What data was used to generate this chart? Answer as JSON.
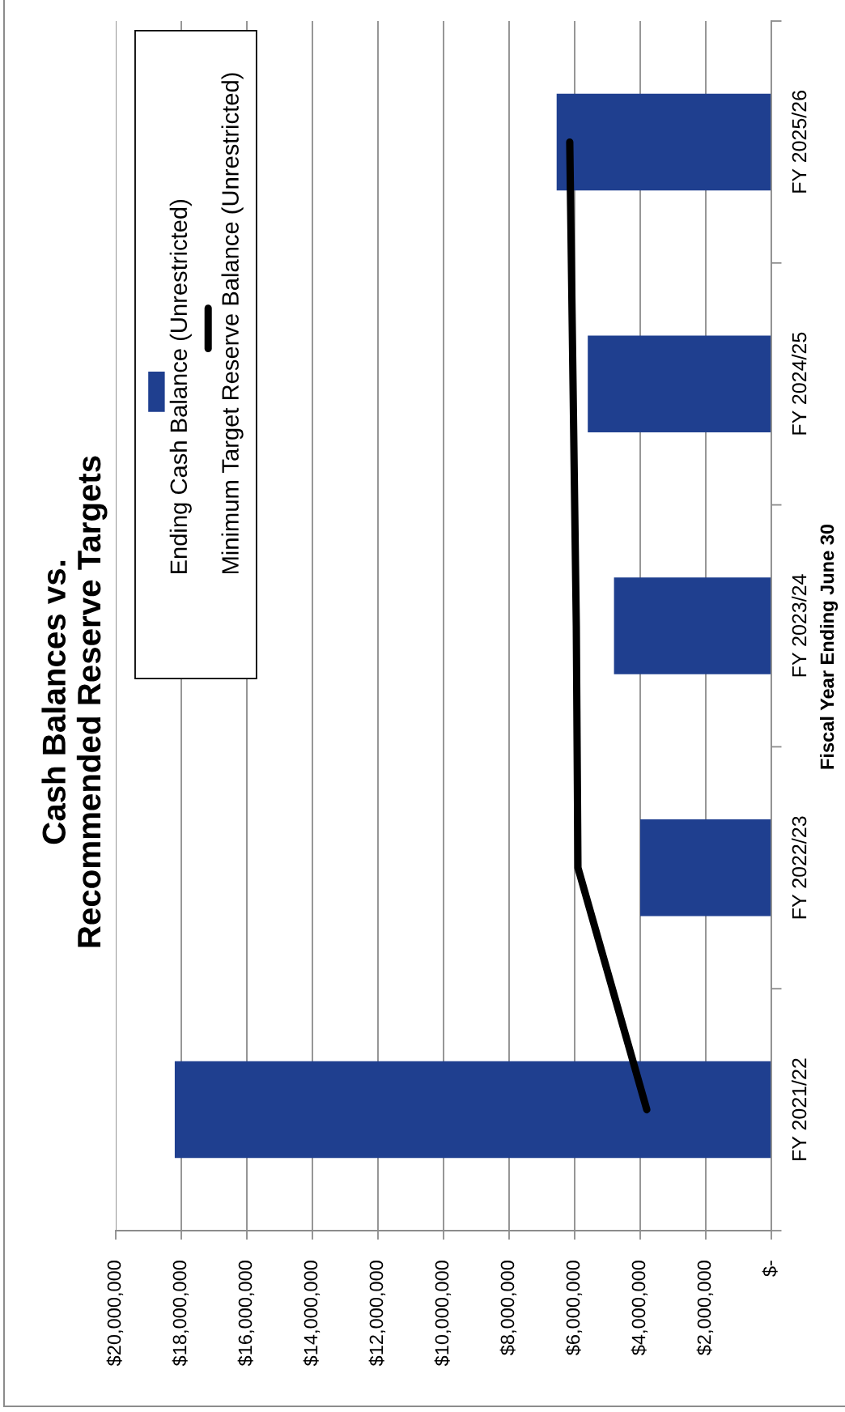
{
  "chart_data": {
    "type": "bar",
    "orientation": "horizontal",
    "title": "Cash Balances vs.\nRecommended Reserve Targets",
    "ylabel": "Fiscal Year Ending June 30",
    "categories": [
      "FY 2025/26",
      "FY 2024/25",
      "FY 2023/24",
      "FY 2022/23",
      "FY 2021/22"
    ],
    "series": [
      {
        "name": "Ending Cash Balance (Unrestricted)",
        "color": "#1f3f8f",
        "values": [
          6550000,
          5600000,
          4800000,
          4000000,
          18200000
        ]
      },
      {
        "name": "Minimum Target Reserve Balance (Unrestricted)",
        "type": "line",
        "color": "#000000",
        "values": [
          6150000,
          6050000,
          5950000,
          5900000,
          3800000
        ]
      }
    ],
    "xlim": [
      20000000,
      0
    ],
    "xticks": [
      {
        "value": 0,
        "label": "$-"
      },
      {
        "value": 2000000,
        "label": "$2,000,000"
      },
      {
        "value": 4000000,
        "label": "$4,000,000"
      },
      {
        "value": 6000000,
        "label": "$6,000,000"
      },
      {
        "value": 8000000,
        "label": "$8,000,000"
      },
      {
        "value": 10000000,
        "label": "$10,000,000"
      },
      {
        "value": 12000000,
        "label": "$12,000,000"
      },
      {
        "value": 14000000,
        "label": "$14,000,000"
      },
      {
        "value": 16000000,
        "label": "$16,000,000"
      },
      {
        "value": 18000000,
        "label": "$18,000,000"
      },
      {
        "value": 20000000,
        "label": "$20,000,000"
      }
    ],
    "grid": "x",
    "legend": "top left"
  }
}
